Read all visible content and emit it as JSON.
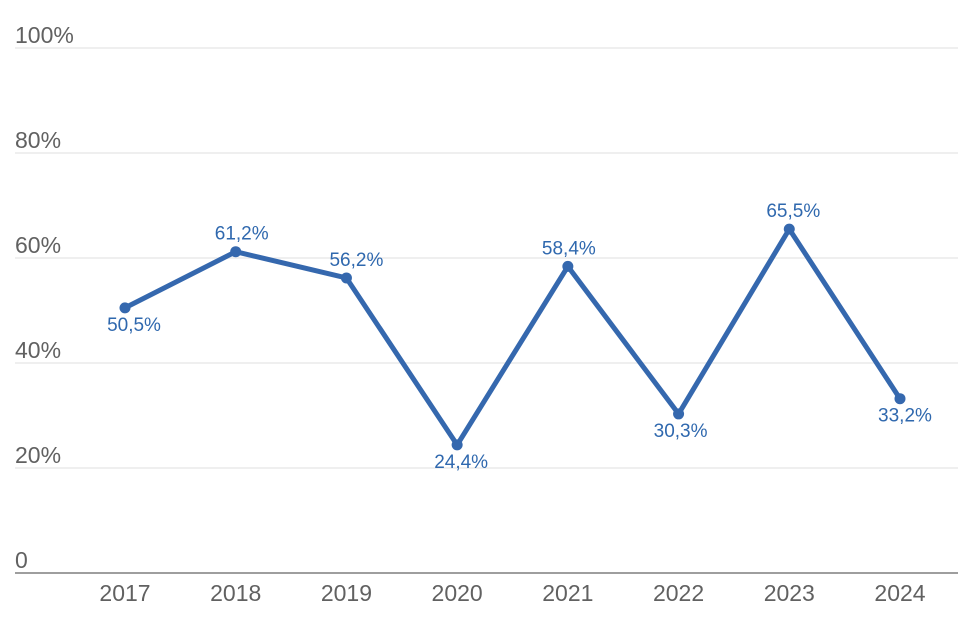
{
  "chart_data": {
    "type": "line",
    "title": "",
    "xlabel": "",
    "ylabel": "",
    "categories": [
      "2017",
      "2018",
      "2019",
      "2020",
      "2021",
      "2022",
      "2023",
      "2024"
    ],
    "series": [
      {
        "name": "",
        "values": [
          50.5,
          61.2,
          56.2,
          24.4,
          58.4,
          30.3,
          65.5,
          33.2
        ]
      }
    ],
    "point_labels": [
      "50,5%",
      "61,2%",
      "56,2%",
      "24,4%",
      "58,4%",
      "30,3%",
      "65,5%",
      "33,2%"
    ],
    "label_positions": [
      "below",
      "above",
      "above",
      "below",
      "above",
      "below",
      "above",
      "below"
    ],
    "label_dx": [
      9,
      6,
      10,
      4,
      1,
      2,
      4,
      5
    ],
    "y_ticks": [
      {
        "label": "100%",
        "value": 100
      },
      {
        "label": "80%",
        "value": 80
      },
      {
        "label": "60%",
        "value": 60
      },
      {
        "label": "40%",
        "value": 40
      },
      {
        "label": "20%",
        "value": 20
      },
      {
        "label": "0",
        "value": 0
      }
    ],
    "ylim": [
      0,
      100
    ],
    "grid": true,
    "legend": "none",
    "decimal_separator": ",",
    "colors": {
      "line": "#3568ae",
      "point": "#3568ae",
      "data_label": "#2f68ae",
      "axis_text": "#616161",
      "gridline": "#efefef",
      "baseline": "#9e9e9e",
      "background": "#ffffff"
    }
  }
}
